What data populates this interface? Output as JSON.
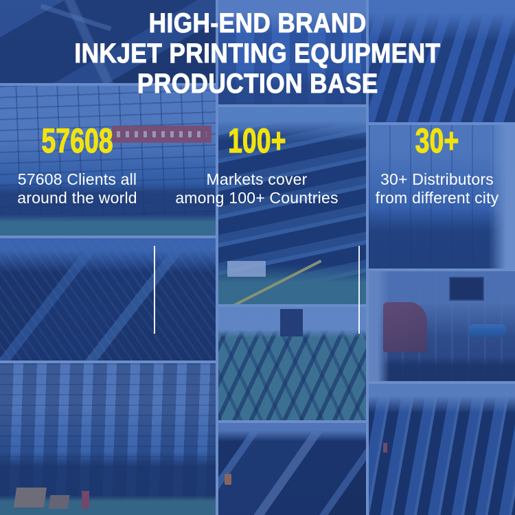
{
  "banner": {
    "title": {
      "line1": "HIGH-END BRAND",
      "line2": "INKJET PRINTING EQUIPMENT",
      "line3": "PRODUCTION BASE"
    },
    "stats": [
      {
        "value": "57608",
        "caption1": "57608 Clients all",
        "caption2": "around the world"
      },
      {
        "value": "100+",
        "caption1": "Markets cover",
        "caption2": "among 100+ Countries"
      },
      {
        "value": "30+",
        "caption1": "30+ Distributors",
        "caption2": "from different city"
      }
    ],
    "colors": {
      "accent_yellow": "#F2E30E",
      "overlay_blue": "#2F5BB5",
      "text_white": "#FFFFFF",
      "divider_white": "#FFFFFF"
    }
  }
}
